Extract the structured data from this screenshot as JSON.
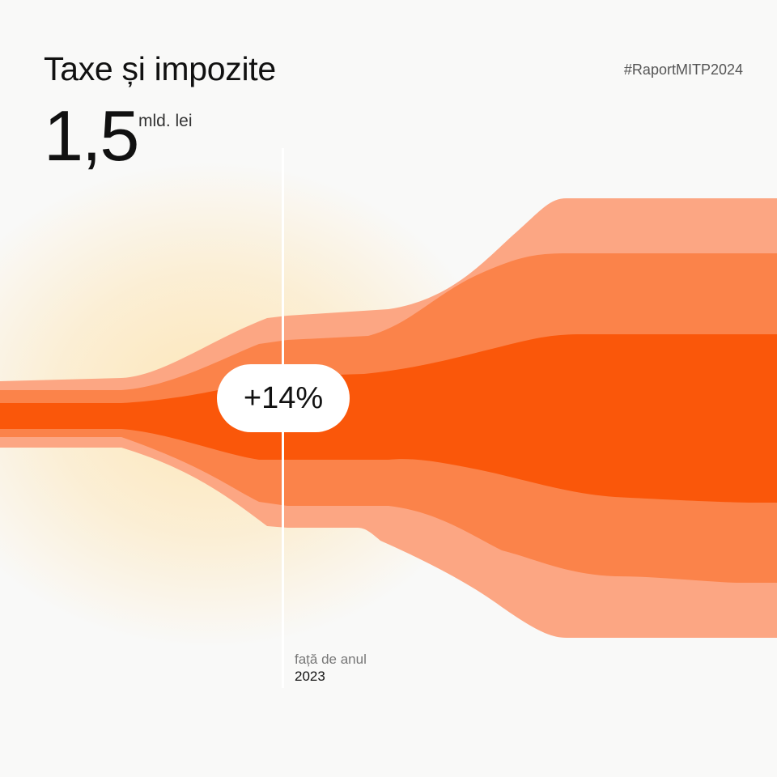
{
  "header": {
    "title": "Taxe și impozite",
    "hashtag": "#RaportMITP2024"
  },
  "metric": {
    "value": "1,5",
    "unit": "mld. lei",
    "change": "+14%",
    "comparison_label": "față de anul",
    "comparison_year": "2023"
  },
  "colors": {
    "background": "#f9f9f8",
    "glow": "#fde6b8",
    "band_outer": "#fca683",
    "band_middle": "#fb834a",
    "band_core": "#fa570a"
  }
}
